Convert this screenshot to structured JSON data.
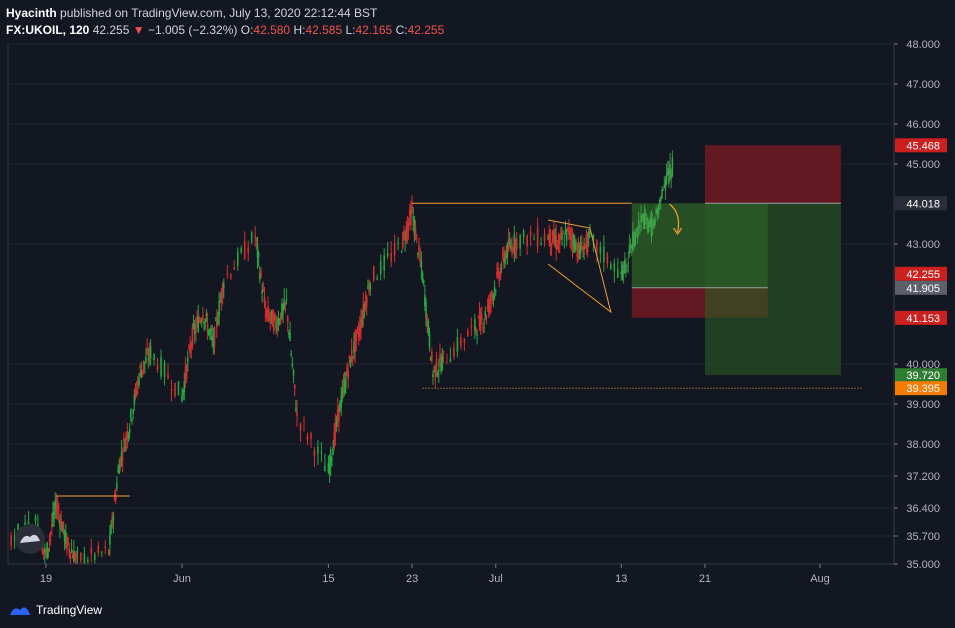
{
  "header": {
    "author": "Hyacinth",
    "published_text": "published on TradingView.com, July 13, 2020 22:12:44 BST"
  },
  "symbol_bar": {
    "symbol": "FX:UKOIL, 120",
    "last": "42.255",
    "change": "−1.005 (−2.32%)",
    "open_label": "O:",
    "open": "42.580",
    "high_label": "H:",
    "high": "42.585",
    "low_label": "L:",
    "low": "42.165",
    "close_label": "C:",
    "close": "42.255"
  },
  "footer": {
    "brand": "TradingView"
  },
  "colors": {
    "background": "#131722",
    "grid": "#1f2433",
    "up": "#26a641",
    "down": "#d32f2f",
    "annotation": "#f0a030",
    "stop_zone": "#6b1a22",
    "target_zone": "#2a5a25"
  },
  "chart_data": {
    "type": "candlestick",
    "symbol": "FX:UKOIL",
    "interval": "120",
    "x_axis": {
      "ticks": [
        "19",
        "Jun",
        "15",
        "23",
        "Jul",
        "13",
        "21",
        "Aug"
      ],
      "tick_positions": [
        "2020-05-19",
        "2020-06-01",
        "2020-06-15",
        "2020-06-23",
        "2020-07-01",
        "2020-07-13",
        "2020-07-21",
        "2020-08-01"
      ]
    },
    "y_axis": {
      "side": "right",
      "range": [
        35.0,
        48.0
      ],
      "ticks": [
        "48.000",
        "47.000",
        "46.000",
        "45.000",
        "43.000",
        "40.000",
        "39.000",
        "38.000",
        "37.200",
        "36.400",
        "35.700",
        "35.000"
      ]
    },
    "price_labels": [
      {
        "label": "45.468",
        "value": 45.468,
        "color": "#cc1f1f"
      },
      {
        "label": "44.018",
        "value": 44.018,
        "color": "#2a2e39"
      },
      {
        "label": "42.255",
        "value": 42.255,
        "color": "#cc1f1f"
      },
      {
        "label": "41.905",
        "value": 41.905,
        "color": "#5d606b"
      },
      {
        "label": "41.153",
        "value": 41.153,
        "color": "#cc1f1f"
      },
      {
        "label": "39.720",
        "value": 39.72,
        "color": "#2e7d32"
      },
      {
        "label": "39.395",
        "value": 39.395,
        "color": "#f57c00"
      }
    ],
    "trend_segments": [
      {
        "date": "2020-05-13",
        "close": 35.4
      },
      {
        "date": "2020-05-14",
        "close": 36.1
      },
      {
        "date": "2020-05-15",
        "close": 35.6
      },
      {
        "date": "2020-05-18",
        "close": 36.0
      },
      {
        "date": "2020-05-19",
        "close": 35.2
      },
      {
        "date": "2020-05-20",
        "close": 36.5
      },
      {
        "date": "2020-05-21",
        "close": 35.5
      },
      {
        "date": "2020-05-22",
        "close": 35.1
      },
      {
        "date": "2020-05-25",
        "close": 35.3
      },
      {
        "date": "2020-05-26",
        "close": 37.5
      },
      {
        "date": "2020-05-27",
        "close": 38.5
      },
      {
        "date": "2020-05-28",
        "close": 39.8
      },
      {
        "date": "2020-05-29",
        "close": 40.3
      },
      {
        "date": "2020-06-01",
        "close": 39.2
      },
      {
        "date": "2020-06-02",
        "close": 40.7
      },
      {
        "date": "2020-06-03",
        "close": 41.3
      },
      {
        "date": "2020-06-04",
        "close": 40.5
      },
      {
        "date": "2020-06-05",
        "close": 42.1
      },
      {
        "date": "2020-06-08",
        "close": 43.2
      },
      {
        "date": "2020-06-09",
        "close": 41.3
      },
      {
        "date": "2020-06-10",
        "close": 41.0
      },
      {
        "date": "2020-06-11",
        "close": 41.5
      },
      {
        "date": "2020-06-12",
        "close": 38.7
      },
      {
        "date": "2020-06-15",
        "close": 37.3
      },
      {
        "date": "2020-06-16",
        "close": 38.8
      },
      {
        "date": "2020-06-17",
        "close": 40.0
      },
      {
        "date": "2020-06-18",
        "close": 40.9
      },
      {
        "date": "2020-06-19",
        "close": 42.1
      },
      {
        "date": "2020-06-22",
        "close": 43.0
      },
      {
        "date": "2020-06-23",
        "close": 43.8
      },
      {
        "date": "2020-06-24",
        "close": 42.2
      },
      {
        "date": "2020-06-25",
        "close": 39.8
      },
      {
        "date": "2020-06-26",
        "close": 40.1
      },
      {
        "date": "2020-06-29",
        "close": 40.9
      },
      {
        "date": "2020-06-30",
        "close": 41.2
      },
      {
        "date": "2020-07-01",
        "close": 42.0
      },
      {
        "date": "2020-07-02",
        "close": 42.8
      },
      {
        "date": "2020-07-03",
        "close": 43.1
      },
      {
        "date": "2020-07-06",
        "close": 43.2
      },
      {
        "date": "2020-07-07",
        "close": 43.0
      },
      {
        "date": "2020-07-08",
        "close": 43.3
      },
      {
        "date": "2020-07-09",
        "close": 42.8
      },
      {
        "date": "2020-07-10",
        "close": 43.1
      },
      {
        "date": "2020-07-13",
        "close": 42.255
      }
    ],
    "projection": [
      {
        "date": "2020-07-13",
        "close": 42.2
      },
      {
        "date": "2020-07-14",
        "close": 43.0
      },
      {
        "date": "2020-07-15",
        "close": 43.6
      },
      {
        "date": "2020-07-16",
        "close": 43.4
      },
      {
        "date": "2020-07-17",
        "close": 44.4
      },
      {
        "date": "2020-07-18",
        "close": 45.0
      }
    ],
    "position_tool": {
      "stop_top": 45.468,
      "entry": 44.018,
      "target": 39.72,
      "entry_date": "2020-07-21",
      "end_date": "2020-08-03"
    },
    "second_position": {
      "top": 44.018,
      "entry": 41.905,
      "stop": 41.153,
      "start_date": "2020-07-14",
      "end_date": "2020-07-27"
    },
    "annotations": {
      "resistance_line": {
        "value": 44.018,
        "from": "2020-06-23",
        "to": "2020-07-14"
      },
      "support_dotted": {
        "value": 39.395,
        "from": "2020-06-24",
        "to": "2020-08-05"
      },
      "early_top_line": {
        "value": 36.7,
        "from": "2020-05-20",
        "to": "2020-05-27"
      }
    }
  }
}
